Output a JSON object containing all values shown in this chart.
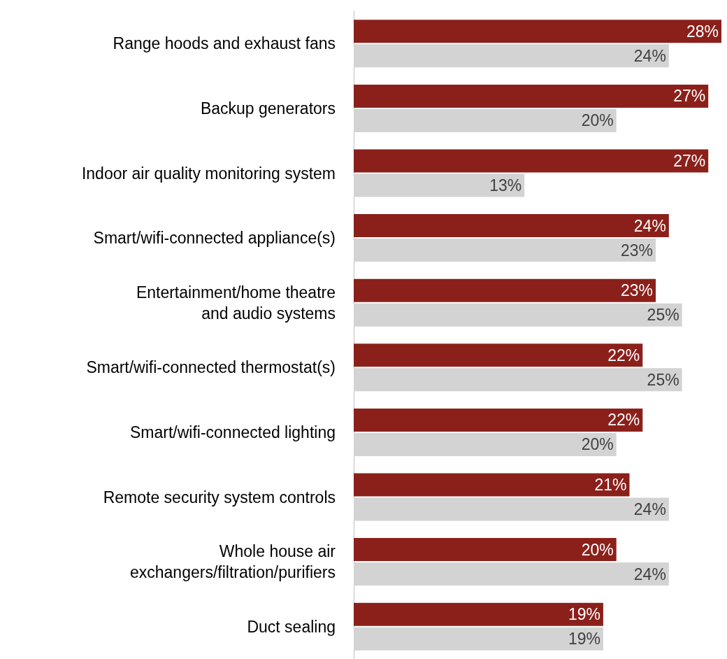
{
  "chart_data": {
    "type": "bar",
    "orientation": "horizontal",
    "categories": [
      "Range hoods and exhaust fans",
      "Backup generators",
      "Indoor air quality monitoring system",
      "Smart/wifi-connected appliance(s)",
      "Entertainment/home theatre\nand audio systems",
      "Smart/wifi-connected thermostat(s)",
      "Smart/wifi-connected lighting",
      "Remote security system controls",
      "Whole house air\nexchangers/filtration/purifiers",
      "Duct sealing"
    ],
    "series": [
      {
        "color": "#8b201b",
        "values": [
          28,
          27,
          27,
          24,
          23,
          22,
          22,
          21,
          20,
          19
        ],
        "value_labels": [
          "28%",
          "27%",
          "27%",
          "24%",
          "23%",
          "22%",
          "22%",
          "21%",
          "20%",
          "19%"
        ]
      },
      {
        "color": "#d3d3d3",
        "values": [
          24,
          20,
          13,
          23,
          25,
          25,
          20,
          24,
          24,
          19
        ],
        "value_labels": [
          "24%",
          "20%",
          "13%",
          "23%",
          "25%",
          "25%",
          "20%",
          "24%",
          "24%",
          "19%"
        ]
      }
    ]
  }
}
